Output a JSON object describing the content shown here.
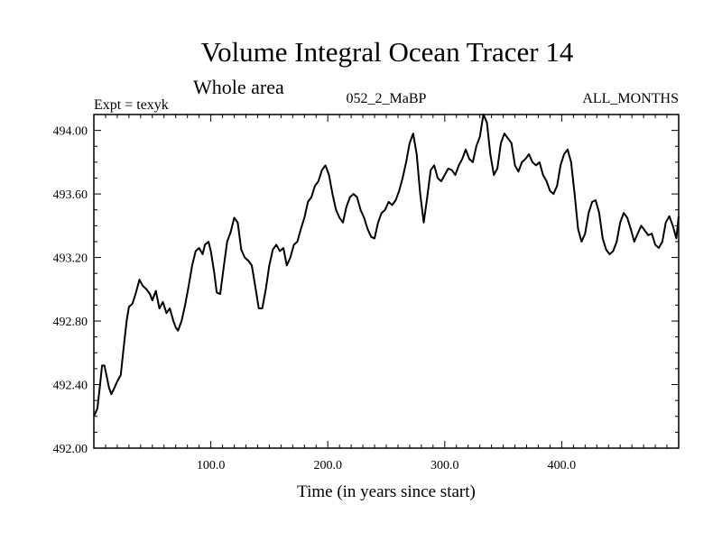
{
  "chart_data": {
    "type": "line",
    "title": "Volume Integral Ocean Tracer 14",
    "subtitle": "Whole area",
    "expt_label": "Expt = texyk",
    "run_label": "052_2_MaBP",
    "season_label": "ALL_MONTHS",
    "xlabel": "Time (in years since start)",
    "ylabel": "",
    "xlim": [
      0,
      500
    ],
    "ylim": [
      492.0,
      494.1
    ],
    "x_ticks": [
      100,
      200,
      300,
      400
    ],
    "x_tick_labels": [
      "100.0",
      "200.0",
      "300.0",
      "400.0"
    ],
    "y_ticks": [
      492.0,
      492.4,
      492.8,
      493.2,
      493.6,
      494.0
    ],
    "y_tick_labels": [
      "492.00",
      "492.40",
      "492.80",
      "493.20",
      "493.60",
      "494.00"
    ],
    "grid": false,
    "legend": "none",
    "line_color": "#000000",
    "series": [
      {
        "x": [
          0,
          3,
          5,
          7,
          9,
          11,
          13,
          15,
          17,
          20,
          23,
          25,
          28,
          30,
          33,
          36,
          39,
          42,
          45,
          48,
          50,
          53,
          56,
          59,
          62,
          65,
          68,
          70,
          72,
          75,
          78,
          81,
          84,
          87,
          90,
          93,
          95,
          98,
          100,
          103,
          105,
          108,
          111,
          114,
          117,
          120,
          123,
          126,
          129,
          132,
          135,
          138,
          141,
          144,
          147,
          150,
          153,
          156,
          159,
          162,
          165,
          168,
          171,
          174,
          177,
          180,
          183,
          186,
          189,
          192,
          195,
          198,
          201,
          204,
          207,
          210,
          213,
          216,
          219,
          222,
          225,
          228,
          231,
          234,
          237,
          240,
          243,
          246,
          249,
          252,
          255,
          258,
          261,
          264,
          267,
          270,
          273,
          276,
          279,
          282,
          285,
          288,
          291,
          294,
          297,
          300,
          303,
          306,
          309,
          312,
          315,
          318,
          321,
          324,
          327,
          330,
          333,
          336,
          339,
          342,
          345,
          348,
          351,
          354,
          357,
          360,
          363,
          366,
          369,
          372,
          375,
          378,
          381,
          384,
          387,
          390,
          393,
          396,
          399,
          402,
          405,
          408,
          411,
          414,
          417,
          420,
          423,
          426,
          429,
          432,
          435,
          438,
          441,
          444,
          447,
          450,
          453,
          456,
          459,
          462,
          465,
          468,
          471,
          474,
          477,
          480,
          483,
          486,
          489,
          492,
          495,
          498,
          500
        ],
        "y": [
          492.2,
          492.25,
          492.38,
          492.52,
          492.52,
          492.45,
          492.38,
          492.34,
          492.37,
          492.42,
          492.46,
          492.6,
          492.8,
          492.89,
          492.91,
          492.98,
          493.06,
          493.02,
          493.0,
          492.97,
          492.93,
          492.99,
          492.88,
          492.92,
          492.85,
          492.88,
          492.8,
          492.76,
          492.74,
          492.8,
          492.9,
          493.02,
          493.15,
          493.24,
          493.26,
          493.22,
          493.28,
          493.3,
          493.24,
          493.1,
          492.98,
          492.97,
          493.14,
          493.3,
          493.36,
          493.45,
          493.42,
          493.25,
          493.2,
          493.18,
          493.15,
          493.02,
          492.88,
          492.88,
          493.0,
          493.15,
          493.25,
          493.28,
          493.24,
          493.26,
          493.15,
          493.2,
          493.28,
          493.3,
          493.38,
          493.45,
          493.55,
          493.58,
          493.65,
          493.68,
          493.75,
          493.78,
          493.72,
          493.6,
          493.5,
          493.45,
          493.42,
          493.52,
          493.58,
          493.6,
          493.58,
          493.5,
          493.45,
          493.38,
          493.33,
          493.32,
          493.42,
          493.48,
          493.5,
          493.55,
          493.53,
          493.56,
          493.62,
          493.7,
          493.8,
          493.92,
          493.98,
          493.85,
          493.6,
          493.42,
          493.58,
          493.75,
          493.78,
          493.7,
          493.68,
          493.72,
          493.76,
          493.75,
          493.72,
          493.78,
          493.82,
          493.88,
          493.82,
          493.8,
          493.9,
          493.96,
          494.1,
          494.05,
          493.85,
          493.72,
          493.76,
          493.92,
          493.98,
          493.95,
          493.92,
          493.78,
          493.74,
          493.8,
          493.82,
          493.85,
          493.8,
          493.78,
          493.8,
          493.72,
          493.68,
          493.62,
          493.6,
          493.65,
          493.78,
          493.85,
          493.88,
          493.8,
          493.6,
          493.38,
          493.3,
          493.35,
          493.48,
          493.55,
          493.56,
          493.48,
          493.32,
          493.25,
          493.22,
          493.24,
          493.3,
          493.42,
          493.48,
          493.45,
          493.38,
          493.3,
          493.35,
          493.4,
          493.37,
          493.34,
          493.35,
          493.28,
          493.26,
          493.3,
          493.42,
          493.46,
          493.4,
          493.32,
          493.46
        ]
      }
    ]
  }
}
